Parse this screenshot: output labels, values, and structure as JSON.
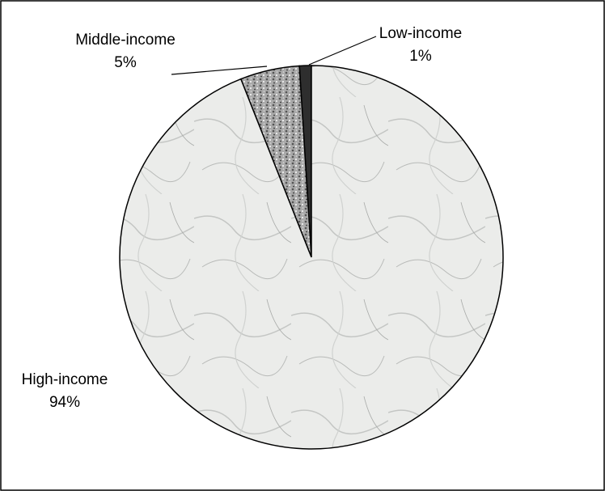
{
  "chart_data": {
    "type": "pie",
    "categories": [
      "Low-income",
      "Middle-income",
      "High-income"
    ],
    "values": [
      1,
      5,
      94
    ],
    "value_labels": [
      "1%",
      "5%",
      "94%"
    ],
    "colors": [
      "#2e2e2e",
      "#8f8f8f",
      "#e6e7e6"
    ]
  }
}
